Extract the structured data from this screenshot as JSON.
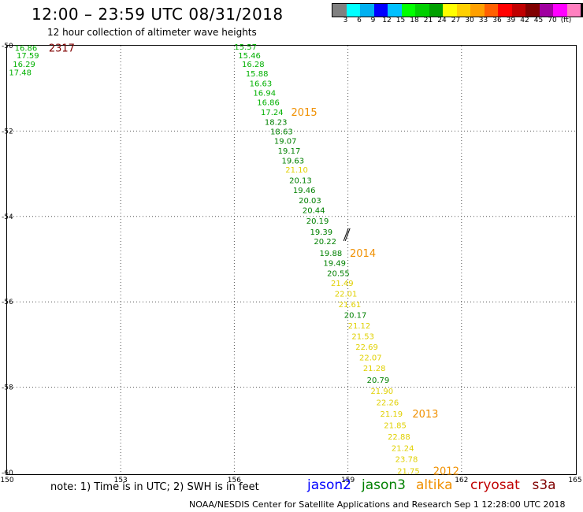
{
  "header": {
    "title": "12:00 – 23:59 UTC 08/31/2018",
    "subtitle": "12 hour collection of altimeter wave heights"
  },
  "colorbar": {
    "colors": [
      "#808080",
      "#00ffff",
      "#00b0f0",
      "#0000ff",
      "#00c0ff",
      "#00ff00",
      "#00d000",
      "#00a000",
      "#ffff00",
      "#ffd000",
      "#ffa000",
      "#ff6000",
      "#ff0000",
      "#c00000",
      "#800000",
      "#a000a0",
      "#ff00ff",
      "#ff80c0",
      "#000000"
    ],
    "labels": [
      "3",
      "6",
      "9",
      "12",
      "15",
      "18",
      "21",
      "24",
      "27",
      "30",
      "33",
      "36",
      "39",
      "42",
      "45",
      "70",
      "(ft)"
    ]
  },
  "axes": {
    "x_ticks": [
      "150",
      "153",
      "156",
      "159",
      "162",
      "165"
    ],
    "y_ticks": [
      "-50",
      "-52",
      "-54",
      "-56",
      "-58",
      "-60"
    ]
  },
  "chart_data": {
    "type": "scatter",
    "x_range": [
      150,
      165
    ],
    "y_range": [
      -60,
      -50
    ],
    "passes": [
      {
        "label": "2317",
        "label_color": "#800000",
        "points": [
          {
            "x": 150.2,
            "y": -50.05,
            "v": "16.86",
            "c": "#00b000"
          },
          {
            "x": 150.25,
            "y": -50.22,
            "v": "17.59",
            "c": "#00b000"
          },
          {
            "x": 150.15,
            "y": -50.42,
            "v": "16.29",
            "c": "#00b000"
          },
          {
            "x": 150.05,
            "y": -50.62,
            "v": "17.48",
            "c": "#00b000"
          }
        ]
      },
      {
        "label": "2015",
        "label_color": "#f09000",
        "points": [
          {
            "x": 156.0,
            "y": -50.02,
            "v": "15.57",
            "c": "#00b000"
          },
          {
            "x": 156.1,
            "y": -50.22,
            "v": "15.46",
            "c": "#00b000"
          },
          {
            "x": 156.2,
            "y": -50.42,
            "v": "16.28",
            "c": "#00b000"
          },
          {
            "x": 156.3,
            "y": -50.65,
            "v": "15.88",
            "c": "#00b000"
          },
          {
            "x": 156.4,
            "y": -50.88,
            "v": "16.63",
            "c": "#00b000"
          },
          {
            "x": 156.5,
            "y": -51.1,
            "v": "16.94",
            "c": "#00b000"
          },
          {
            "x": 156.6,
            "y": -51.32,
            "v": "16.86",
            "c": "#00b000"
          },
          {
            "x": 156.7,
            "y": -51.55,
            "v": "17.24",
            "c": "#00b000"
          },
          {
            "x": 156.8,
            "y": -51.78,
            "v": "18.23",
            "c": "#008000"
          },
          {
            "x": 156.95,
            "y": -52.0,
            "v": "18.63",
            "c": "#008000"
          },
          {
            "x": 157.05,
            "y": -52.22,
            "v": "19.07",
            "c": "#008000"
          },
          {
            "x": 157.15,
            "y": -52.45,
            "v": "19.17",
            "c": "#008000"
          },
          {
            "x": 157.25,
            "y": -52.68,
            "v": "19.63",
            "c": "#008000"
          },
          {
            "x": 157.35,
            "y": -52.9,
            "v": "21.10",
            "c": "#e0d000"
          },
          {
            "x": 157.45,
            "y": -53.15,
            "v": "20.13",
            "c": "#008000"
          },
          {
            "x": 157.55,
            "y": -53.38,
            "v": "19.46",
            "c": "#008000"
          },
          {
            "x": 157.7,
            "y": -53.62,
            "v": "20.03",
            "c": "#008000"
          },
          {
            "x": 157.8,
            "y": -53.85,
            "v": "20.44",
            "c": "#008000"
          },
          {
            "x": 157.9,
            "y": -54.1,
            "v": "20.19",
            "c": "#008000"
          },
          {
            "x": 158.0,
            "y": -54.35,
            "v": "19.39",
            "c": "#008000"
          },
          {
            "x": 158.1,
            "y": -54.58,
            "v": "20.22",
            "c": "#008000"
          }
        ]
      },
      {
        "label": "2014",
        "label_color": "#f09000",
        "points": [
          {
            "x": 158.25,
            "y": -54.85,
            "v": "19.88",
            "c": "#008000"
          },
          {
            "x": 158.35,
            "y": -55.08,
            "v": "19.49",
            "c": "#008000"
          },
          {
            "x": 158.45,
            "y": -55.32,
            "v": "20.55",
            "c": "#008000"
          },
          {
            "x": 158.55,
            "y": -55.55,
            "v": "21.49",
            "c": "#e0d000"
          },
          {
            "x": 158.65,
            "y": -55.8,
            "v": "22.01",
            "c": "#e0d000"
          },
          {
            "x": 158.75,
            "y": -56.05,
            "v": "21.61",
            "c": "#e0d000"
          },
          {
            "x": 158.9,
            "y": -56.3,
            "v": "20.17",
            "c": "#008000"
          },
          {
            "x": 159.0,
            "y": -56.55,
            "v": "21.12",
            "c": "#e0d000"
          },
          {
            "x": 159.1,
            "y": -56.8,
            "v": "21.53",
            "c": "#e0d000"
          },
          {
            "x": 159.2,
            "y": -57.05,
            "v": "22.69",
            "c": "#e0d000"
          },
          {
            "x": 159.3,
            "y": -57.3,
            "v": "22.07",
            "c": "#e0d000"
          },
          {
            "x": 159.4,
            "y": -57.55,
            "v": "21.28",
            "c": "#e0d000"
          },
          {
            "x": 159.5,
            "y": -57.82,
            "v": "20.79",
            "c": "#008000"
          }
        ]
      },
      {
        "label": "2013",
        "label_color": "#f09000",
        "points": [
          {
            "x": 159.6,
            "y": -58.08,
            "v": "21.90",
            "c": "#e0d000"
          },
          {
            "x": 159.75,
            "y": -58.35,
            "v": "22.26",
            "c": "#e0d000"
          },
          {
            "x": 159.85,
            "y": -58.62,
            "v": "21.19",
            "c": "#e0d000"
          },
          {
            "x": 159.95,
            "y": -58.88,
            "v": "21.85",
            "c": "#e0d000"
          },
          {
            "x": 160.05,
            "y": -59.15,
            "v": "22.88",
            "c": "#e0d000"
          },
          {
            "x": 160.15,
            "y": -59.42,
            "v": "21.24",
            "c": "#e0d000"
          },
          {
            "x": 160.25,
            "y": -59.68,
            "v": "23.78",
            "c": "#e0d000"
          },
          {
            "x": 160.3,
            "y": -59.95,
            "v": "21.75",
            "c": "#e0d000"
          }
        ]
      },
      {
        "label": "2012",
        "label_color": "#f09000",
        "points": []
      }
    ],
    "pass_labels": [
      {
        "text": "2317",
        "x": 151.1,
        "y": -50.05,
        "color": "#800000"
      },
      {
        "text": "2015",
        "x": 157.5,
        "y": -51.55,
        "color": "#f09000"
      },
      {
        "text": "2014",
        "x": 159.05,
        "y": -54.85,
        "color": "#f09000"
      },
      {
        "text": "2013",
        "x": 160.7,
        "y": -58.62,
        "color": "#f09000"
      },
      {
        "text": "2012",
        "x": 161.25,
        "y": -59.95,
        "color": "#f09000"
      }
    ],
    "wind_barb": {
      "x": 158.95,
      "y": -54.35
    }
  },
  "footer": {
    "note": "note: 1) Time is in UTC; 2) SWH is in feet",
    "legend": [
      {
        "text": "jason2",
        "color": "#0000ff"
      },
      {
        "text": "jason3",
        "color": "#008000"
      },
      {
        "text": "altika",
        "color": "#f09000"
      },
      {
        "text": "cryosat",
        "color": "#c00000"
      },
      {
        "text": "s3a",
        "color": "#800000"
      }
    ],
    "credit": "NOAA/NESDIS Center for Satellite Applications and Research   Sep  1 12:28:00 UTC 2018"
  }
}
